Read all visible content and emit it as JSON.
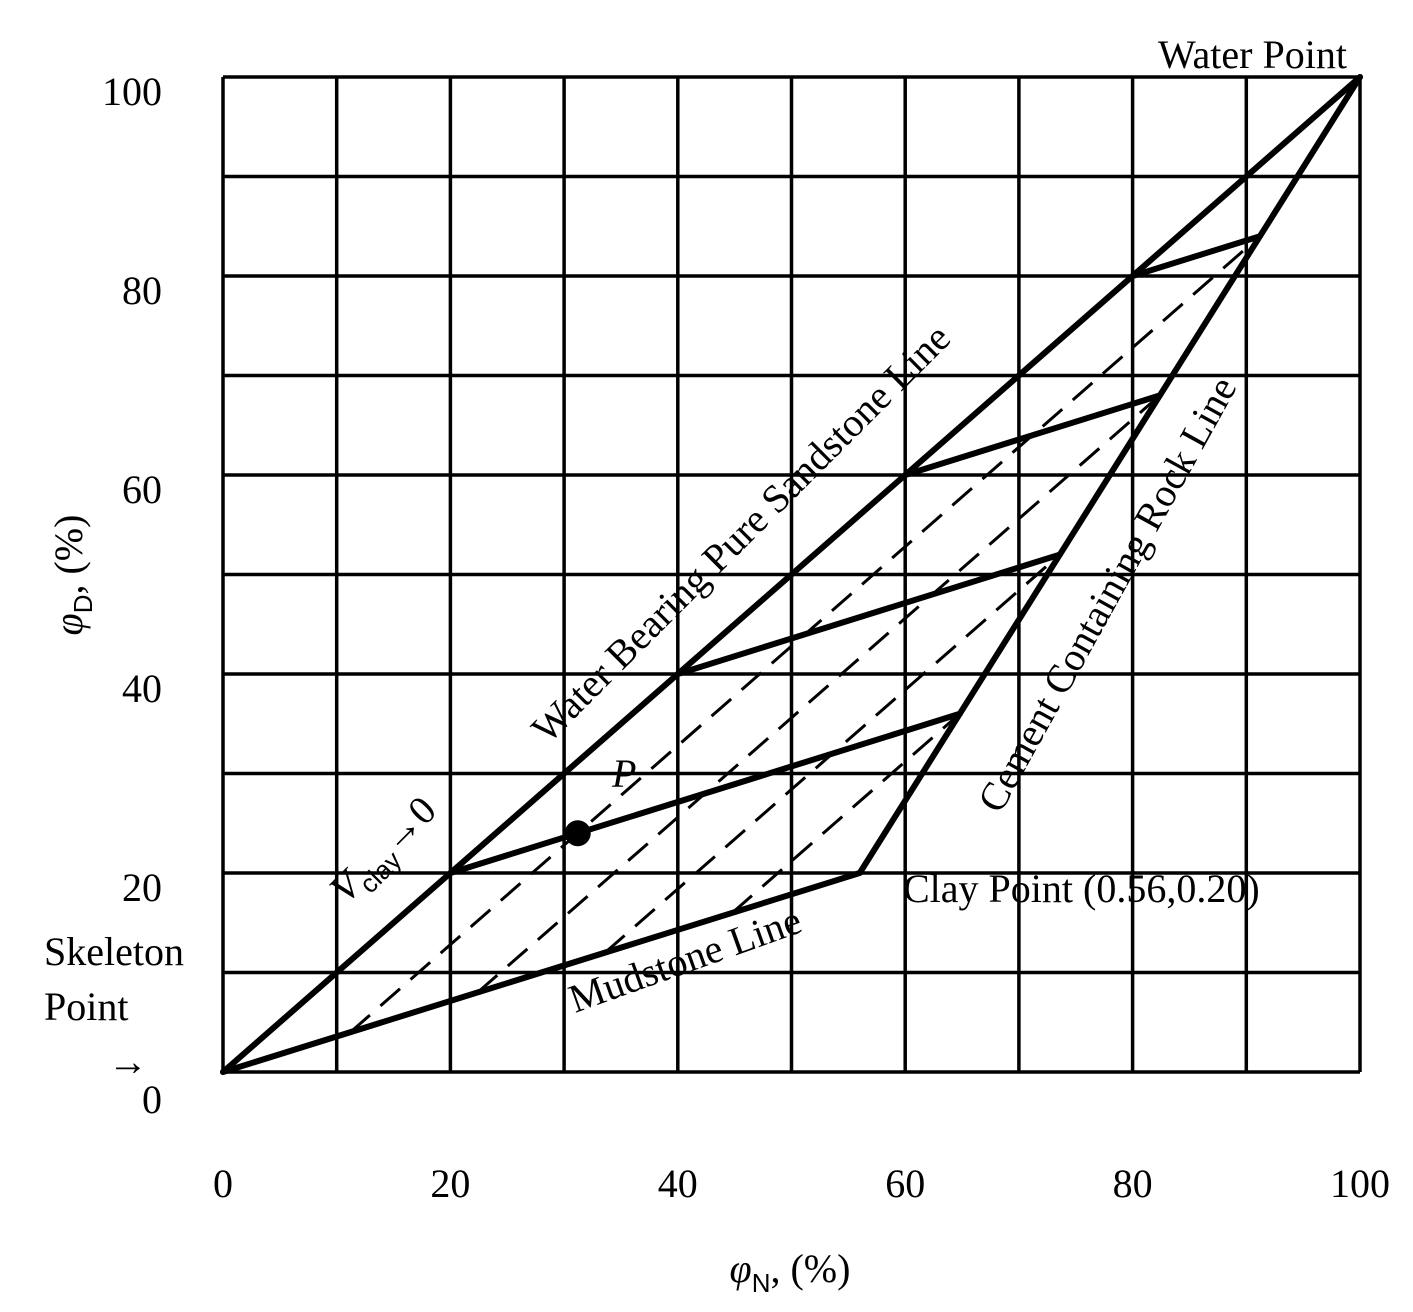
{
  "chart_data": {
    "type": "line",
    "xlabel": {
      "symbol": "φ",
      "sub": "N",
      "rest": ", (%)"
    },
    "ylabel": {
      "symbol": "φ",
      "sub": "D",
      "rest": ", (%)"
    },
    "xlim": [
      0,
      100
    ],
    "ylim": [
      0,
      100
    ],
    "grid": true,
    "grid_step": 10,
    "x_ticks": [
      0,
      20,
      40,
      60,
      80,
      100
    ],
    "y_ticks": [
      0,
      20,
      40,
      60,
      80,
      100
    ],
    "solid_lines": [
      {
        "name": "Water Bearing Pure Sandstone Line",
        "points": [
          [
            0,
            0
          ],
          [
            100,
            100
          ]
        ]
      },
      {
        "name": "Mudstone Line",
        "points": [
          [
            0,
            0
          ],
          [
            56,
            20
          ]
        ]
      },
      {
        "name": "Cement Containing Rock Line",
        "points": [
          [
            56,
            20
          ],
          [
            100,
            100
          ]
        ]
      },
      {
        "name": "",
        "points": [
          [
            20,
            20
          ],
          [
            64.8,
            36
          ]
        ]
      },
      {
        "name": "",
        "points": [
          [
            40,
            40
          ],
          [
            73.6,
            52
          ]
        ]
      },
      {
        "name": "",
        "points": [
          [
            60,
            60
          ],
          [
            82.4,
            68
          ]
        ]
      },
      {
        "name": "",
        "points": [
          [
            80,
            80
          ],
          [
            91.2,
            84
          ]
        ]
      }
    ],
    "dashed_lines": [
      {
        "points": [
          [
            11.2,
            4
          ],
          [
            91.2,
            84
          ]
        ]
      },
      {
        "points": [
          [
            22.4,
            8
          ],
          [
            82.4,
            68
          ]
        ]
      },
      {
        "points": [
          [
            33.6,
            12
          ],
          [
            73.6,
            52
          ]
        ]
      },
      {
        "points": [
          [
            44.8,
            16
          ],
          [
            64.8,
            36
          ]
        ]
      }
    ],
    "point_P": {
      "x": 31.2,
      "y": 24
    },
    "labels": {
      "water_point": "Water Point",
      "sandstone_line": "Water Bearing Pure Sandstone Line",
      "cement_line": "Cement Containing Rock Line",
      "mudstone_line": "Mudstone Line",
      "clay_point": "Clay Point (0.56,0.20)",
      "skeleton_point_1": "Skeleton",
      "skeleton_point_2": "Point",
      "skeleton_arrow": "→",
      "p_label": "P",
      "vclay_v": "V",
      "vclay_sub": "clay",
      "vclay_tail": "→0"
    }
  }
}
